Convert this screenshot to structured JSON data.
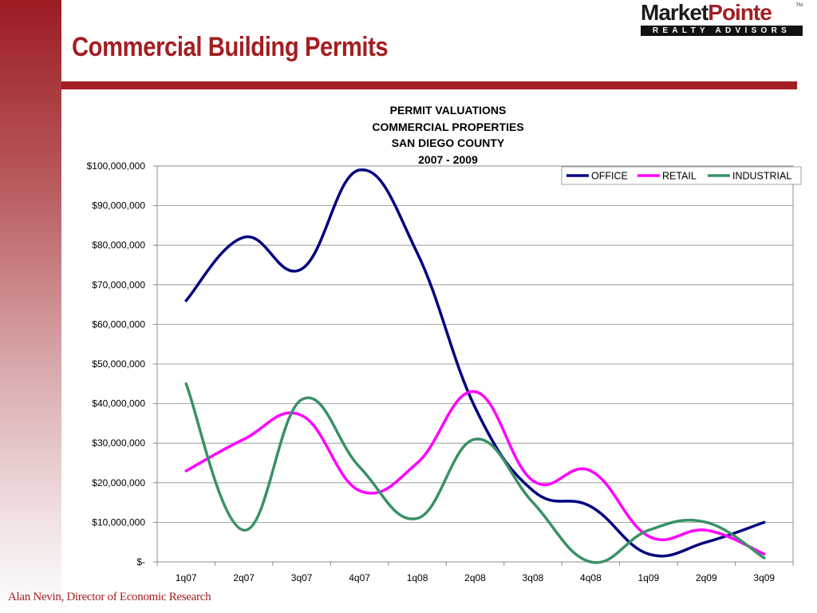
{
  "slide": {
    "title": "Commercial Building Permits",
    "footer": "Alan Nevin, Director of Economic Research",
    "accent_color": "#a31e22"
  },
  "logo": {
    "name_part1": "Market",
    "name_part2": "Pointe",
    "trademark": "TM",
    "tagline": "REALTY ADVISORS"
  },
  "chart_data": {
    "type": "line",
    "title": [
      "PERMIT VALUATIONS",
      "COMMERCIAL PROPERTIES",
      "SAN DIEGO COUNTY",
      "2007 - 2009"
    ],
    "xlabel": "",
    "ylabel": "",
    "categories": [
      "1q07",
      "2q07",
      "3q07",
      "4q07",
      "1q08",
      "2q08",
      "3q08",
      "4q08",
      "1q09",
      "2q09",
      "3q09"
    ],
    "ylim": [
      0,
      100000000
    ],
    "y_ticks": [
      0,
      10000000,
      20000000,
      30000000,
      40000000,
      50000000,
      60000000,
      70000000,
      80000000,
      90000000,
      100000000
    ],
    "y_tick_labels": [
      "$-",
      "$10,000,000",
      "$20,000,000",
      "$30,000,000",
      "$40,000,000",
      "$50,000,000",
      "$60,000,000",
      "$70,000,000",
      "$80,000,000",
      "$90,000,000",
      "$100,000,000"
    ],
    "grid": true,
    "legend_position": "top-right",
    "series": [
      {
        "name": "OFFICE",
        "color": "#00007f",
        "values": [
          66000000,
          82000000,
          74000000,
          99000000,
          78000000,
          39000000,
          18000000,
          14000000,
          2000000,
          5000000,
          10000000
        ]
      },
      {
        "name": "RETAIL",
        "color": "#ff00ff",
        "values": [
          23000000,
          31000000,
          37000000,
          18000000,
          25000000,
          43000000,
          20500000,
          23000000,
          6500000,
          8000000,
          2000000
        ]
      },
      {
        "name": "INDUSTRIAL",
        "color": "#3a9166",
        "values": [
          45000000,
          8000000,
          41000000,
          24000000,
          11000000,
          31000000,
          15000000,
          0,
          8000000,
          10000000,
          1000000
        ]
      }
    ]
  }
}
